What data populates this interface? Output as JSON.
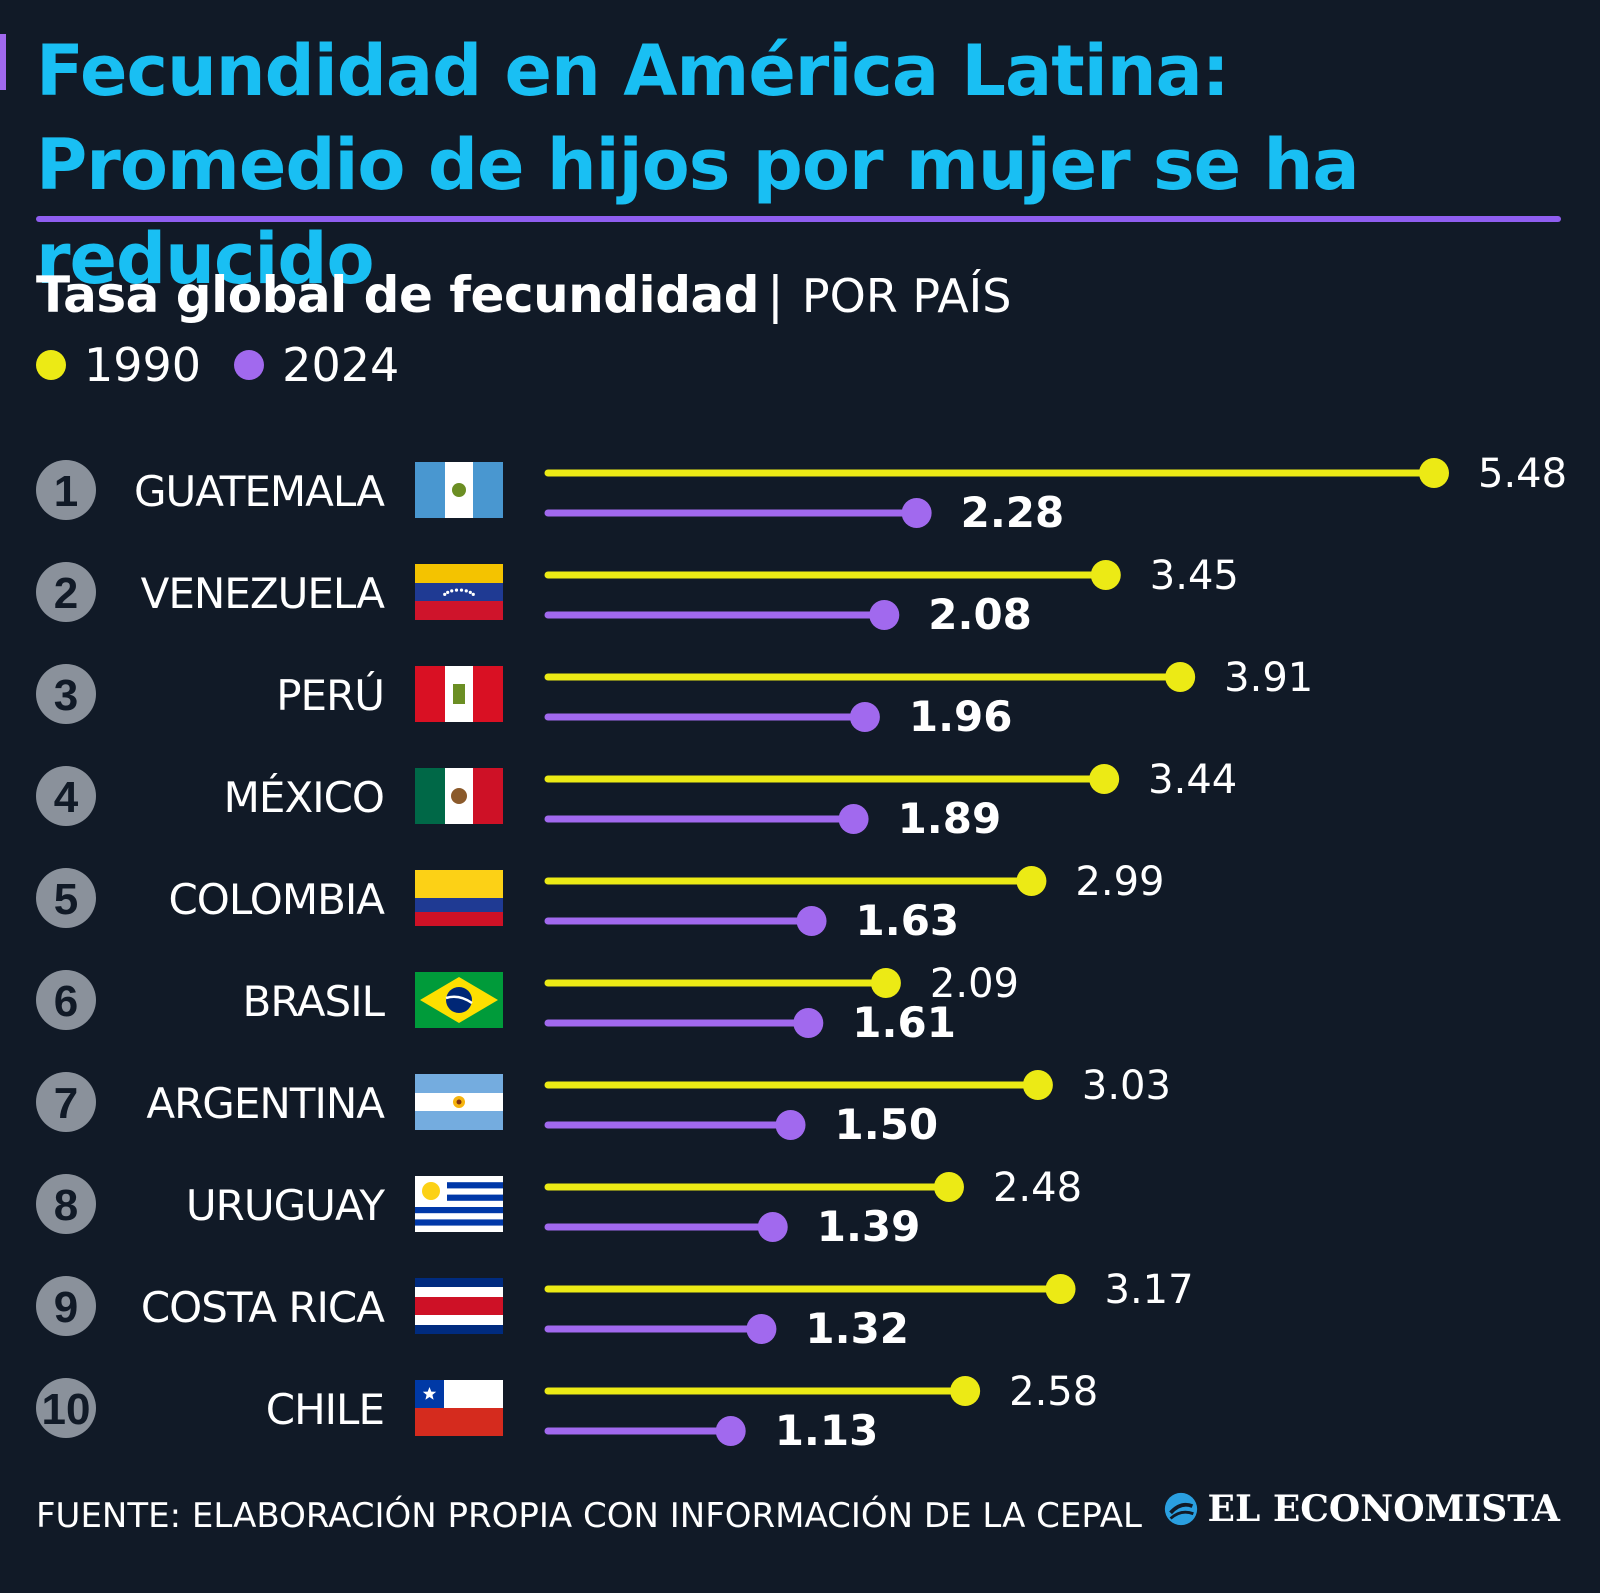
{
  "header": {
    "title": "Fecundidad en América Latina: Promedio de hijos por mujer se ha reducido",
    "subtitle_main": "Tasa global de fecundidad",
    "subtitle_sep": "|",
    "subtitle_tag": "POR PAÍS"
  },
  "legend": [
    {
      "label": "1990",
      "color": "#ecea15"
    },
    {
      "label": "2024",
      "color": "#a169ee"
    }
  ],
  "chart_data": {
    "type": "lollipop",
    "categories": [
      "GUATEMALA",
      "VENEZUELA",
      "PERÚ",
      "MÉXICO",
      "COLOMBIA",
      "BRASIL",
      "ARGENTINA",
      "URUGUAY",
      "COSTA RICA",
      "CHILE"
    ],
    "ranks": [
      "1",
      "2",
      "3",
      "4",
      "5",
      "6",
      "7",
      "8",
      "9",
      "10"
    ],
    "series": [
      {
        "name": "1990",
        "color": "#ecea15",
        "values": [
          5.48,
          3.45,
          3.91,
          3.44,
          2.99,
          2.09,
          3.03,
          2.48,
          3.17,
          2.58
        ],
        "labels": [
          "5.48",
          "3.45",
          "3.91",
          "3.44",
          "2.99",
          "2.09",
          "3.03",
          "2.48",
          "3.17",
          "2.58"
        ]
      },
      {
        "name": "2024",
        "color": "#a169ee",
        "values": [
          2.28,
          2.08,
          1.96,
          1.89,
          1.63,
          1.61,
          1.5,
          1.39,
          1.32,
          1.13
        ],
        "labels": [
          "2.28",
          "2.08",
          "1.96",
          "1.89",
          "1.63",
          "1.61",
          "1.50",
          "1.39",
          "1.32",
          "1.13"
        ]
      }
    ],
    "flags": [
      "guatemala-flag-icon",
      "venezuela-flag-icon",
      "peru-flag-icon",
      "mexico-flag-icon",
      "colombia-flag-icon",
      "brazil-flag-icon",
      "argentina-flag-icon",
      "uruguay-flag-icon",
      "costa-rica-flag-icon",
      "chile-flag-icon"
    ],
    "legend_position": "top-left",
    "grid": false
  },
  "footer": {
    "source": "FUENTE: ELABORACIÓN PROPIA CON INFORMACIÓN DE LA CEPAL",
    "brand": "EL ECONOMISTA",
    "brand_icon": "el-economista-logo-icon"
  },
  "colors": {
    "background": "#111a27",
    "title": "#19bff3",
    "rule": "#8f5ef0",
    "text": "#ffffff",
    "rank_badge": "#8a919b"
  }
}
